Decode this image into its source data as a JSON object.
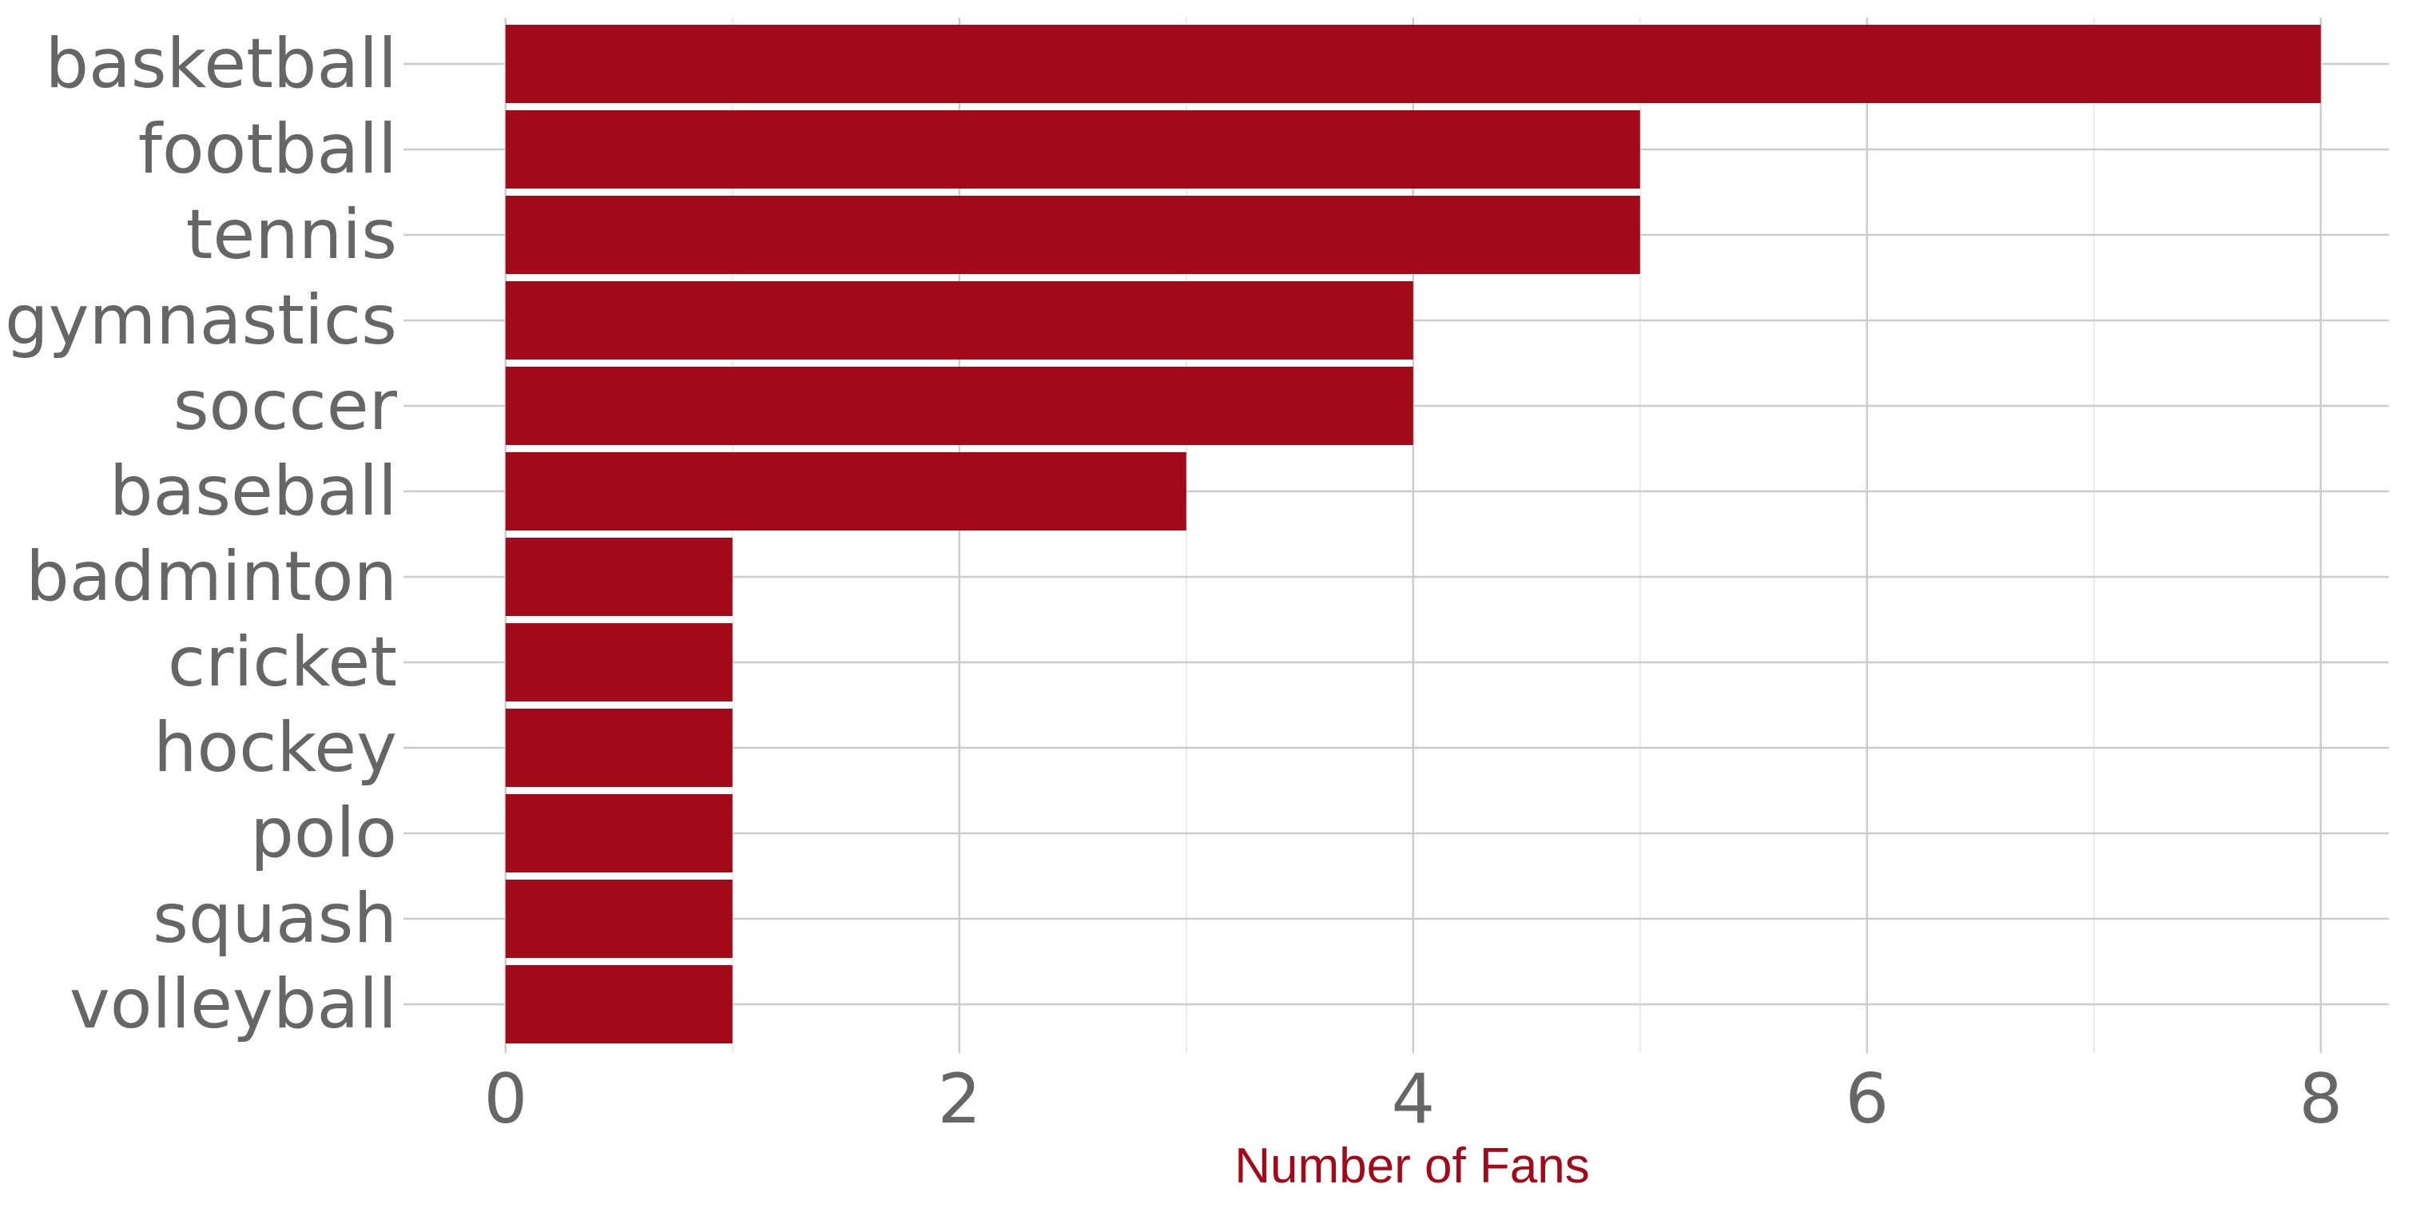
{
  "chart_data": {
    "type": "bar",
    "orientation": "horizontal",
    "categories": [
      "basketball",
      "football",
      "tennis",
      "gymnastics",
      "soccer",
      "baseball",
      "badminton",
      "cricket",
      "hockey",
      "polo",
      "squash",
      "volleyball"
    ],
    "values": [
      8,
      5,
      5,
      4,
      4,
      3,
      1,
      1,
      1,
      1,
      1,
      1
    ],
    "title": "",
    "xlabel": "Number of Fans",
    "ylabel": "",
    "xlim": [
      -0.45,
      8.3
    ],
    "xticks": [
      "0",
      "2",
      "4",
      "6",
      "8"
    ],
    "grid": true,
    "legend": "none",
    "colors": {
      "bar": "#A20A19",
      "xlabel": "#A20A19",
      "tick_text": "#666666",
      "grid_major": "#CCCCCC",
      "grid_minor": "#EBEBEB"
    }
  }
}
